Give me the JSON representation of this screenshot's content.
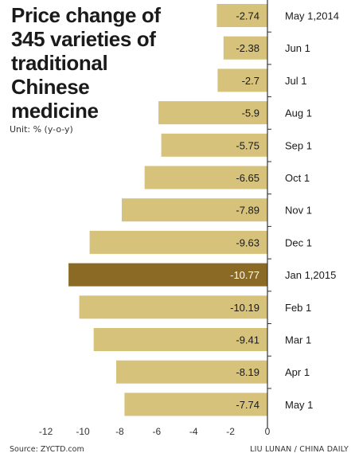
{
  "chart_data": {
    "type": "bar",
    "orientation": "horizontal",
    "title": "Price change of\n345 varieties of\ntraditional\nChinese\nmedicine",
    "unit": "Unit: % (y-o-y)",
    "categories": [
      "May 1,2014",
      "Jun 1",
      "Jul 1",
      "Aug 1",
      "Sep 1",
      "Oct 1",
      "Nov 1",
      "Dec 1",
      "Jan 1,2015",
      "Feb 1",
      "Mar 1",
      "Apr 1",
      "May 1"
    ],
    "values": [
      -2.74,
      -2.38,
      -2.7,
      -5.9,
      -5.75,
      -6.65,
      -7.89,
      -9.63,
      -10.77,
      -10.19,
      -9.41,
      -8.19,
      -7.74
    ],
    "highlight_index": 8,
    "xlim": [
      -12,
      0
    ],
    "xticks": [
      -12,
      -10,
      -8,
      -6,
      -4,
      -2,
      0
    ],
    "bar_color": "#d6c27a",
    "highlight_color": "#8b6a25",
    "grid": false
  },
  "source": "Source: ZYCTD.com",
  "credit": "LIU LUNAN / CHINA DAILY"
}
